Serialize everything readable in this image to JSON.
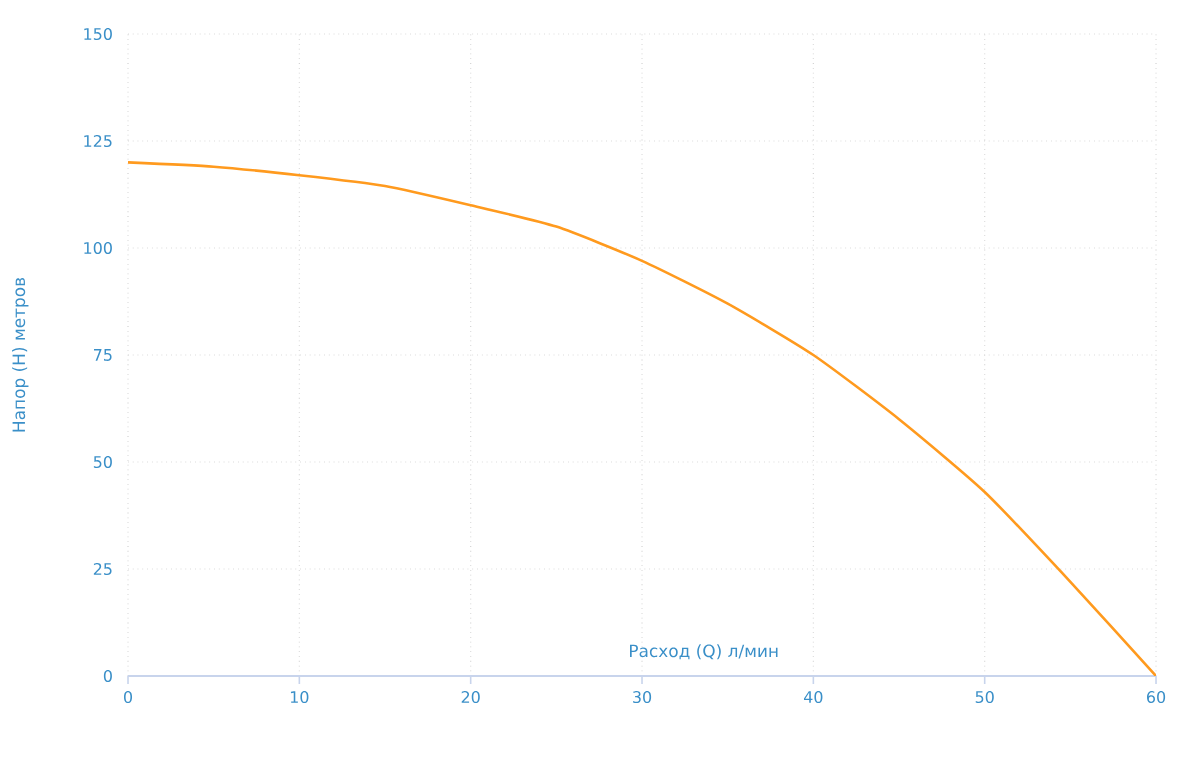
{
  "chart_data": {
    "type": "line",
    "xlabel": "Расход (Q) л/мин",
    "ylabel": "Напор (H) метров",
    "x": [
      0,
      5,
      10,
      15,
      20,
      25,
      30,
      35,
      40,
      45,
      50,
      55,
      60
    ],
    "series": [
      {
        "color": "#ff9a1e",
        "values": [
          120,
          119,
          117,
          114.5,
          110,
          105,
          97,
          87,
          75,
          60,
          43,
          22,
          0
        ]
      }
    ],
    "xlim": [
      0,
      60
    ],
    "ylim": [
      0,
      150
    ],
    "xticks": [
      0,
      10,
      20,
      30,
      40,
      50,
      60
    ],
    "yticks": [
      0,
      25,
      50,
      75,
      100,
      125,
      150
    ],
    "grid": true,
    "marker": "none",
    "line_style": "solid"
  }
}
